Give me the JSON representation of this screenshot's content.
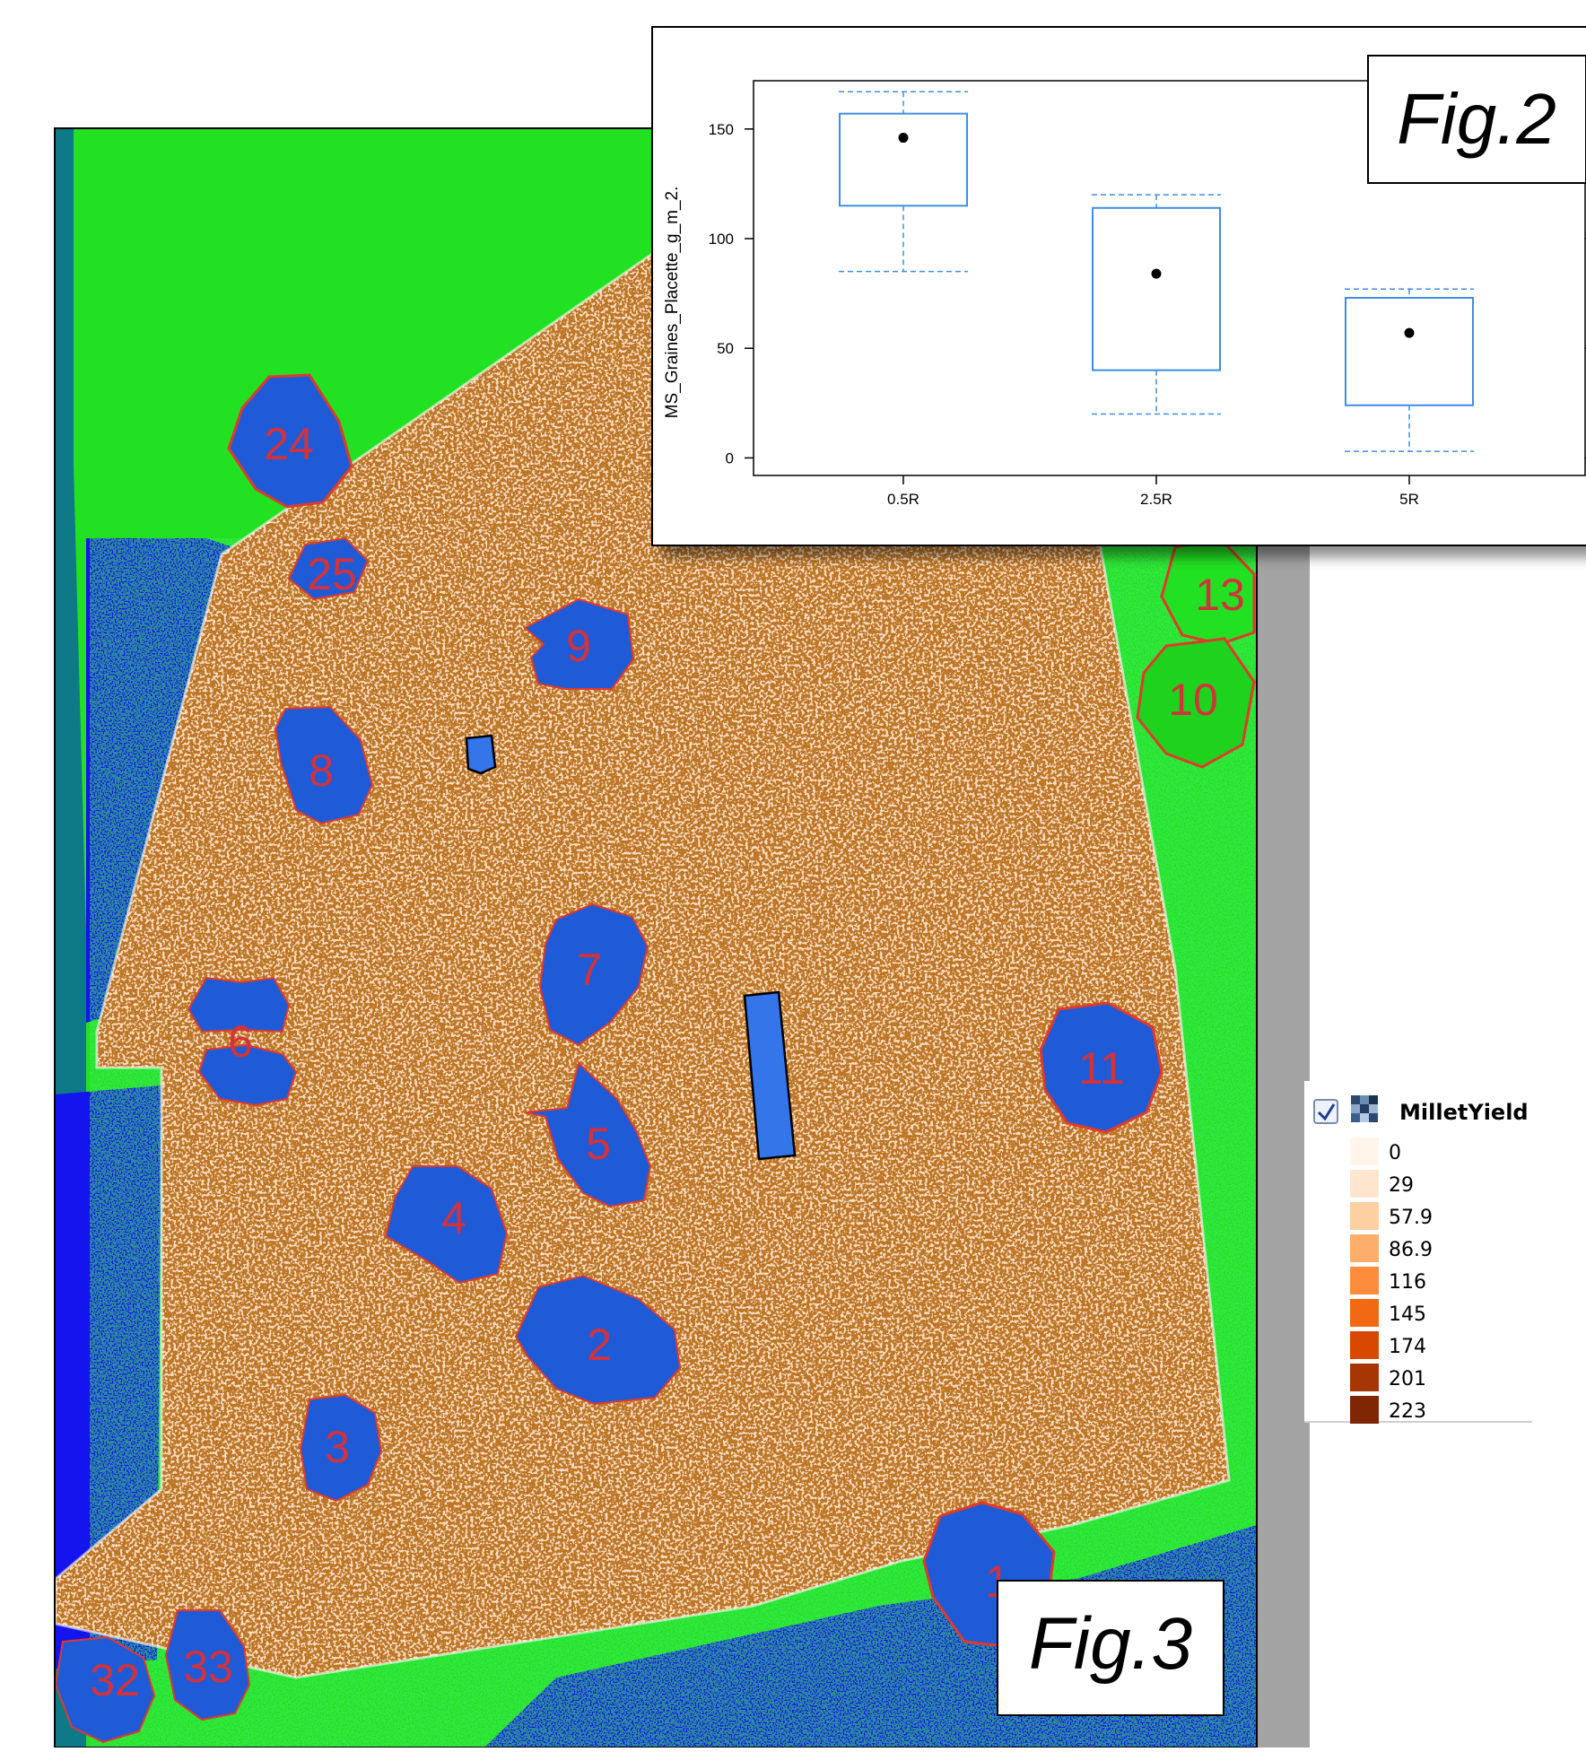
{
  "fig3": {
    "label": "Fig.3",
    "zone_labels": [
      "24",
      "25",
      "9",
      "13",
      "10",
      "8",
      "7",
      "6",
      "11",
      "5",
      "4",
      "2",
      "3",
      "1",
      "32",
      "33"
    ]
  },
  "legend": {
    "title": "MilletYield",
    "checked": true,
    "layer_icon": "raster-layer-icon",
    "classes": [
      {
        "value": "0",
        "color": "#fff5eb"
      },
      {
        "value": "29",
        "color": "#fee6ce"
      },
      {
        "value": "57.9",
        "color": "#fdd0a2"
      },
      {
        "value": "86.9",
        "color": "#fdae6b"
      },
      {
        "value": "116",
        "color": "#fd8d3c"
      },
      {
        "value": "145",
        "color": "#f16913"
      },
      {
        "value": "174",
        "color": "#d94801"
      },
      {
        "value": "201",
        "color": "#a63603"
      },
      {
        "value": "223",
        "color": "#7f2704"
      }
    ]
  },
  "chart_data": {
    "type": "boxplot",
    "label": "Fig.2",
    "ylabel": "MS_Graines_Placette_g_m_2.",
    "xlabel": "",
    "categories": [
      "0.5R",
      "2.5R",
      "5R"
    ],
    "ylim": [
      -8,
      172
    ],
    "yticks": [
      0,
      50,
      100,
      150
    ],
    "grid": false,
    "boxes": [
      {
        "category": "0.5R",
        "whisker_low": 85,
        "q1": 115,
        "q3": 157,
        "whisker_high": 167,
        "mean": 146
      },
      {
        "category": "2.5R",
        "whisker_low": 20,
        "q1": 40,
        "q3": 114,
        "whisker_high": 120,
        "mean": 84
      },
      {
        "category": "5R",
        "whisker_low": 3,
        "q1": 24,
        "q3": 73,
        "whisker_high": 77,
        "mean": 57
      }
    ],
    "colors": {
      "box": "#3d8ee6",
      "mean": "#000000"
    }
  }
}
